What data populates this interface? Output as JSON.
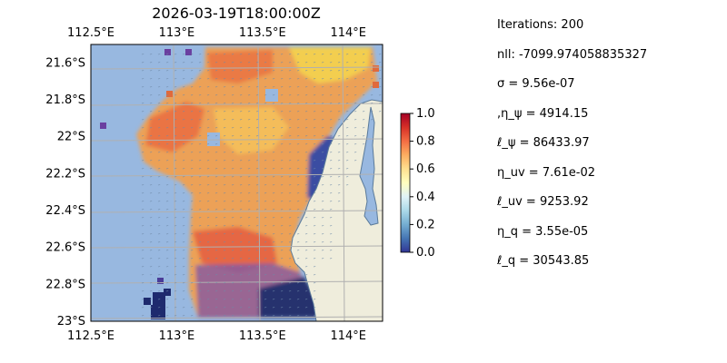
{
  "chart_data": {
    "type": "heatmap",
    "title": "2026-03-19T18:00:00Z",
    "projection": "map",
    "lon_range": [
      112.5,
      114.2
    ],
    "lat_range": [
      -23.0,
      -21.5
    ],
    "x_ticks": [
      {
        "value": 112.5,
        "label": "112.5°E"
      },
      {
        "value": 113.0,
        "label": "113°E"
      },
      {
        "value": 113.5,
        "label": "113.5°E"
      },
      {
        "value": 114.0,
        "label": "114°E"
      }
    ],
    "y_ticks": [
      {
        "value": -21.6,
        "label": "21.6°S"
      },
      {
        "value": -21.8,
        "label": "21.8°S"
      },
      {
        "value": -22.0,
        "label": "22°S"
      },
      {
        "value": -22.2,
        "label": "22.2°S"
      },
      {
        "value": -22.4,
        "label": "22.4°S"
      },
      {
        "value": -22.6,
        "label": "22.6°S"
      },
      {
        "value": -22.8,
        "label": "22.8°S"
      },
      {
        "value": -23.0,
        "label": "23°S"
      }
    ],
    "grid": true,
    "colormap": "RdYlBu_r",
    "colorbar": {
      "range": [
        0.0,
        1.0
      ],
      "ticks": [
        "0.0",
        "0.2",
        "0.4",
        "0.6",
        "0.8",
        "1.0"
      ]
    },
    "colors": {
      "ocean": "#98b8e0",
      "land": "#efeddc",
      "grid": "#b0b0b0",
      "arrows": "#6f8aa8"
    },
    "field_samples": [
      {
        "lon": 113.85,
        "lat": -21.6,
        "value": 0.55
      },
      {
        "lon": 113.65,
        "lat": -21.65,
        "value": 0.6
      },
      {
        "lon": 113.4,
        "lat": -21.7,
        "value": 0.8
      },
      {
        "lon": 113.0,
        "lat": -21.85,
        "value": 0.84
      },
      {
        "lon": 113.4,
        "lat": -22.0,
        "value": 0.62
      },
      {
        "lon": 113.0,
        "lat": -22.1,
        "value": 0.78
      },
      {
        "lon": 113.7,
        "lat": -22.15,
        "value": 0.32
      },
      {
        "lon": 113.4,
        "lat": -22.35,
        "value": 0.82
      },
      {
        "lon": 113.35,
        "lat": -22.55,
        "value": 0.86
      },
      {
        "lon": 113.0,
        "lat": -22.7,
        "value": 0.9
      },
      {
        "lon": 113.4,
        "lat": -22.75,
        "value": 0.92
      },
      {
        "lon": 113.7,
        "lat": -22.95,
        "value": 0.08
      },
      {
        "lon": 114.1,
        "lat": -22.1,
        "value": 0.65
      }
    ]
  },
  "stats": [
    "Iterations: 200",
    "nll: -7099.974058835327",
    "σ = 9.56e-07",
    ",η_ψ = 4914.15",
    "ℓ_ψ = 86433.97",
    "η_uv = 7.61e-02",
    "ℓ_uv = 9253.92",
    "η_q = 3.55e-05",
    "ℓ_q = 30543.85"
  ]
}
